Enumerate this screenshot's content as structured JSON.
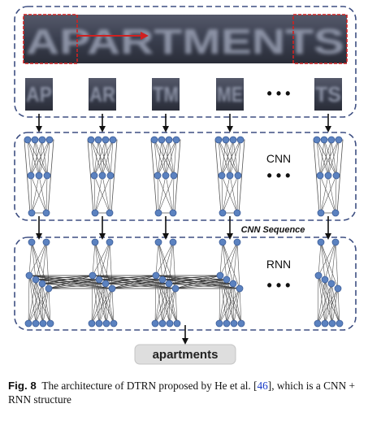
{
  "colors": {
    "dash_border": "#3e4f82",
    "node_fill": "#5b82c0",
    "node_stroke": "#3d5e99",
    "edge": "#555555",
    "arrow": "#111111",
    "red_box": "#d02020",
    "input_bg": "#3a3f4f",
    "output_bg": "#dedede"
  },
  "input": {
    "word": "APARTMENTS",
    "crops": [
      "AP",
      "AR",
      "TM",
      "ME",
      "TS"
    ],
    "ellipsis": "• • •"
  },
  "cnn": {
    "label": "CNN",
    "ellipsis": "• • •",
    "sequence_label": "CNN Sequence"
  },
  "rnn": {
    "label": "RNN",
    "ellipsis": "• • •"
  },
  "output": {
    "word": "apartments"
  },
  "caption": {
    "fig_label": "Fig. 8",
    "text_before": "The architecture of DTRN proposed by He et al. [",
    "ref": "46",
    "text_after": "], which is a CNN + RNN structure"
  }
}
